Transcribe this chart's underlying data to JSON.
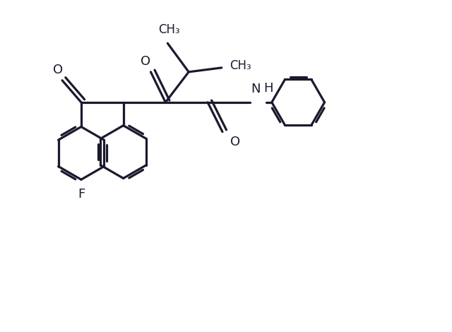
{
  "background_color": "#ffffff",
  "line_color": "#1a1a2e",
  "line_width": 2.3,
  "font_size": 13,
  "fig_width": 6.4,
  "fig_height": 4.7,
  "dpi": 100,
  "xlim": [
    0,
    12
  ],
  "ylim": [
    0,
    9
  ]
}
